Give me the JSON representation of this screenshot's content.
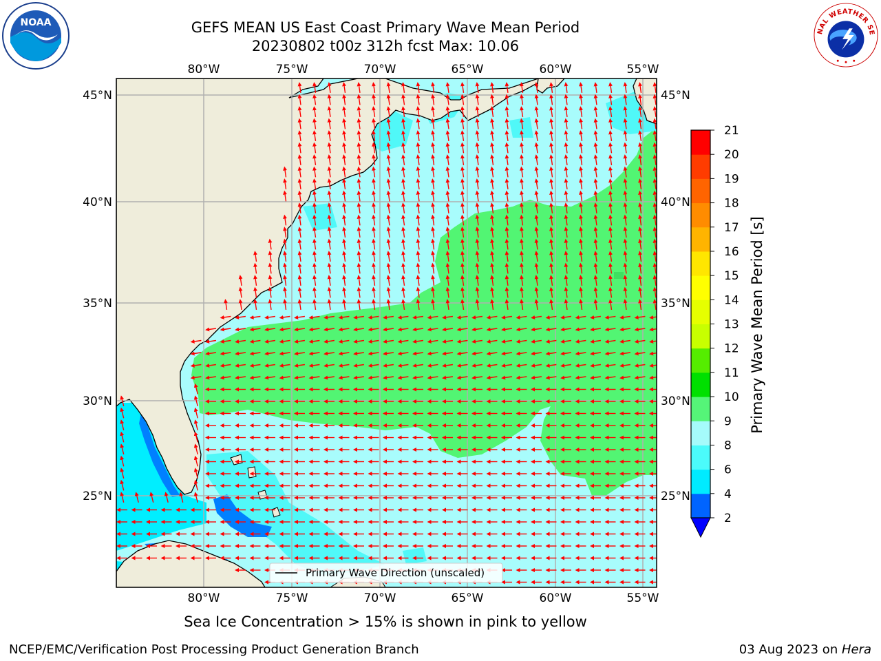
{
  "header": {
    "title_line1": "GEFS MEAN US East Coast Primary Wave Mean Period",
    "title_line2": "20230802 t00z 312h fcst   Max: 10.06"
  },
  "logos": {
    "left": {
      "icon": "noaa-logo",
      "text": "NOAA"
    },
    "right": {
      "icon": "nws-logo",
      "text": "NATIONAL WEATHER SERVICE"
    }
  },
  "map": {
    "lon_labels": [
      "80°W",
      "75°W",
      "70°W",
      "65°W",
      "60°W",
      "55°W"
    ],
    "lat_labels": [
      "45°N",
      "40°N",
      "35°N",
      "30°N",
      "25°N"
    ],
    "legend_label": "Primary Wave Direction (unscaled)",
    "colors": {
      "land": "#efeddb",
      "ocean_low": "#a8fcfc",
      "ocean_mid": "#50f8f8",
      "ocean_6": "#00eeff",
      "green": "#52f573",
      "blue": "#0080ff",
      "arrow": "#ff0000",
      "grid": "#b0b0b0"
    }
  },
  "colorbar": {
    "label": "Primary Wave Mean Period [s]",
    "ticks": [
      "2",
      "4",
      "6",
      "8",
      "9",
      "10",
      "11",
      "12",
      "13",
      "14",
      "15",
      "16",
      "17",
      "18",
      "19",
      "20",
      "21"
    ],
    "colors": [
      "#0064ff",
      "#00ebff",
      "#4bfbfb",
      "#a5fbfb",
      "#55f578",
      "#00e000",
      "#55ed00",
      "#c8ff00",
      "#e6ff00",
      "#ffff00",
      "#ffe600",
      "#ffb400",
      "#ff8c00",
      "#ff6400",
      "#ff3c00",
      "#ff0000"
    ],
    "extend_color": "#0000ff"
  },
  "subtitle": "Sea Ice Concentration > 15% is shown in pink to yellow",
  "footer": {
    "left": "NCEP/EMC/Verification Post Processing Product Generation Branch",
    "right_prefix": "03 Aug 2023 on ",
    "right_host": "Hera"
  }
}
